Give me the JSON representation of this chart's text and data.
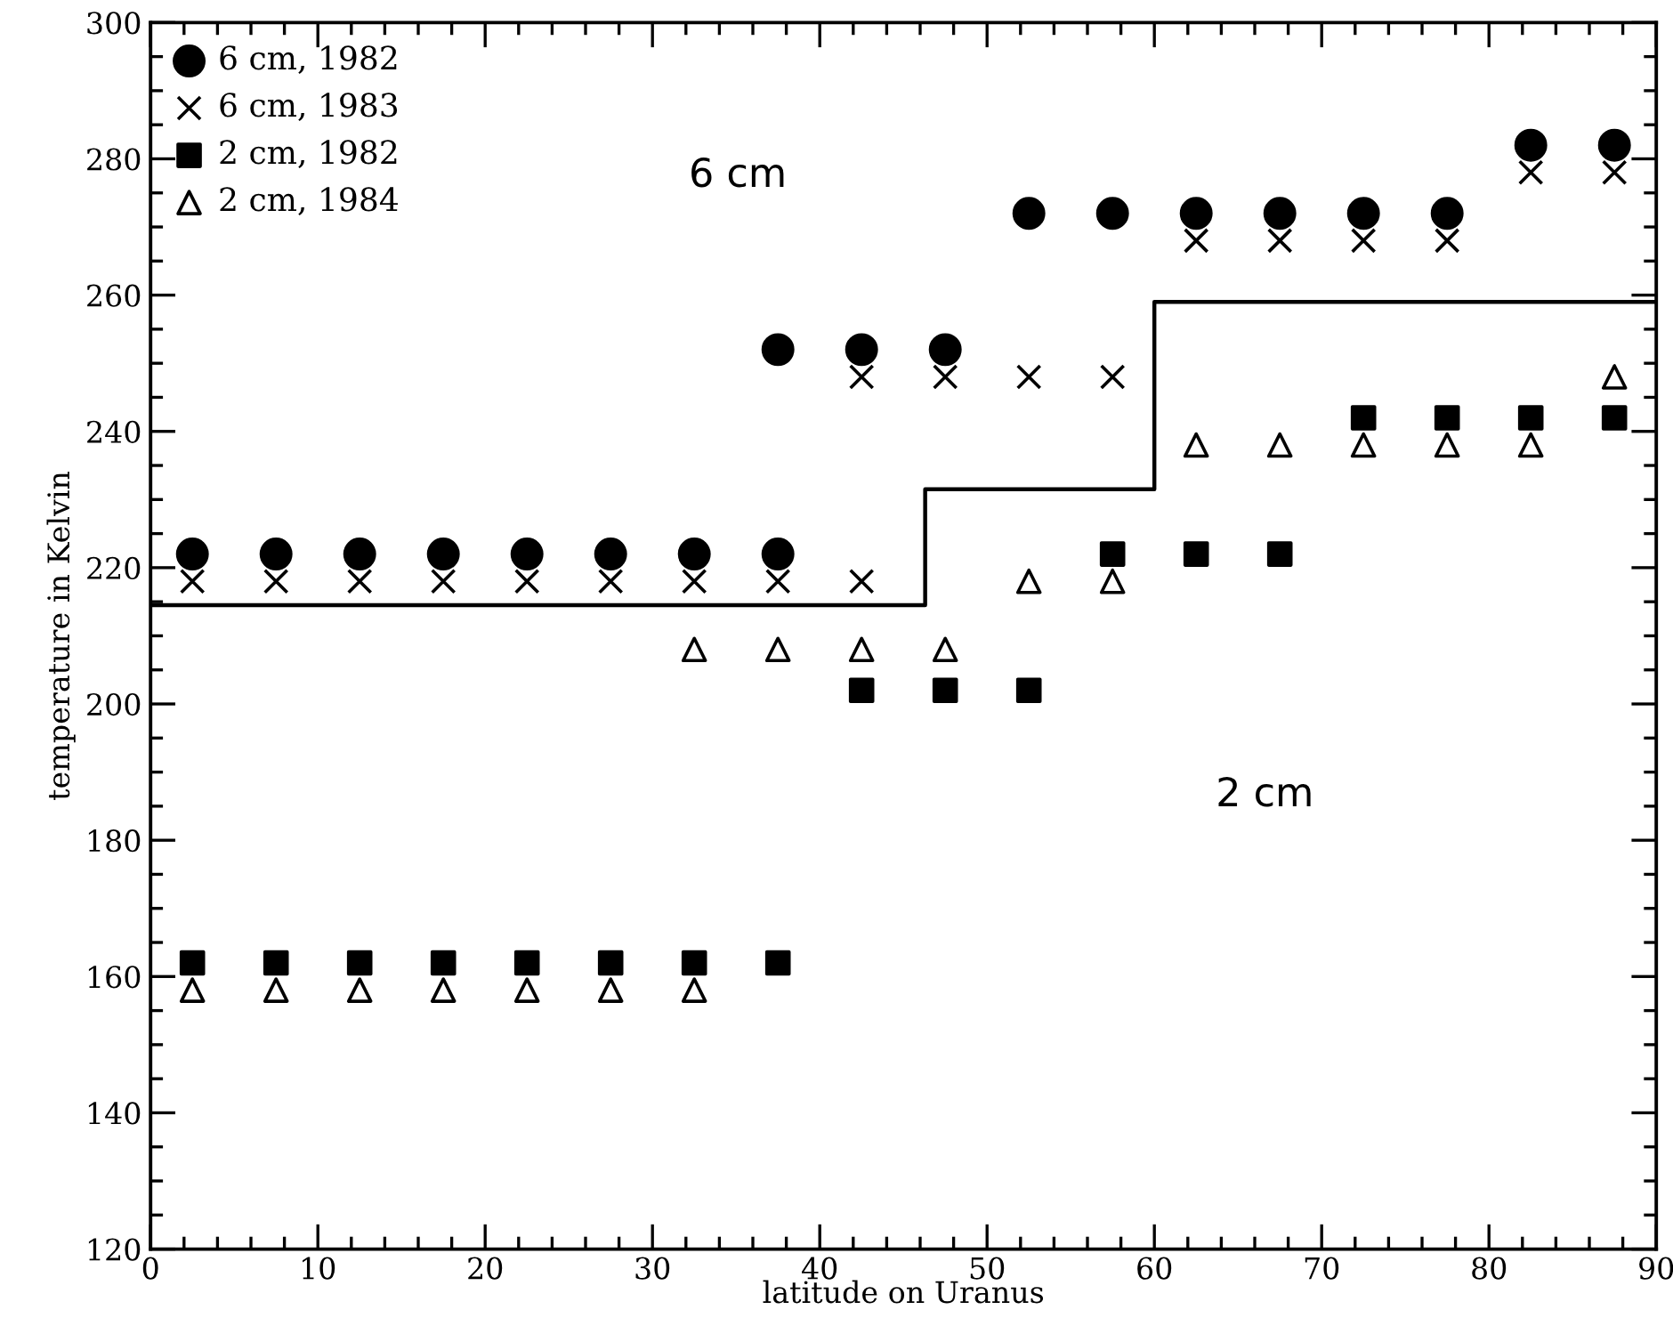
{
  "chart_data": {
    "type": "scatter",
    "xlabel": "latitude on Uranus",
    "ylabel": "temperature in Kelvin",
    "xlim": [
      0,
      90
    ],
    "ylim": [
      120,
      300
    ],
    "xticks": [
      0,
      {
        "value": 2,
        "label": null
      },
      {
        "value": 4,
        "label": null
      },
      {
        "value": 6,
        "label": null
      },
      {
        "value": 8,
        "label": null
      },
      10,
      {
        "value": 12,
        "label": null
      },
      {
        "value": 14,
        "label": null
      },
      {
        "value": 16,
        "label": null
      },
      {
        "value": 18,
        "label": null
      },
      20,
      {
        "value": 22,
        "label": null
      },
      {
        "value": 24,
        "label": null
      },
      {
        "value": 26,
        "label": null
      },
      {
        "value": 28,
        "label": null
      },
      30,
      {
        "value": 32,
        "label": null
      },
      {
        "value": 34,
        "label": null
      },
      {
        "value": 36,
        "label": null
      },
      {
        "value": 38,
        "label": null
      },
      40,
      {
        "value": 42,
        "label": null
      },
      {
        "value": 44,
        "label": null
      },
      {
        "value": 46,
        "label": null
      },
      {
        "value": 48,
        "label": null
      },
      50,
      {
        "value": 52,
        "label": null
      },
      {
        "value": 54,
        "label": null
      },
      {
        "value": 56,
        "label": null
      },
      {
        "value": 58,
        "label": null
      },
      60,
      {
        "value": 62,
        "label": null
      },
      {
        "value": 64,
        "label": null
      },
      {
        "value": 66,
        "label": null
      },
      {
        "value": 68,
        "label": null
      },
      70,
      {
        "value": 72,
        "label": null
      },
      {
        "value": 74,
        "label": null
      },
      {
        "value": 76,
        "label": null
      },
      {
        "value": 78,
        "label": null
      },
      80,
      {
        "value": 82,
        "label": null
      },
      {
        "value": 84,
        "label": null
      },
      {
        "value": 86,
        "label": null
      },
      {
        "value": 88,
        "label": null
      },
      90
    ],
    "yticks": [
      120,
      {
        "value": 125,
        "label": null
      },
      {
        "value": 130,
        "label": null
      },
      {
        "value": 135,
        "label": null
      },
      140,
      {
        "value": 145,
        "label": null
      },
      {
        "value": 150,
        "label": null
      },
      {
        "value": 155,
        "label": null
      },
      160,
      {
        "value": 165,
        "label": null
      },
      {
        "value": 170,
        "label": null
      },
      {
        "value": 175,
        "label": null
      },
      180,
      {
        "value": 185,
        "label": null
      },
      {
        "value": 190,
        "label": null
      },
      {
        "value": 195,
        "label": null
      },
      200,
      {
        "value": 205,
        "label": null
      },
      {
        "value": 210,
        "label": null
      },
      {
        "value": 215,
        "label": null
      },
      220,
      {
        "value": 225,
        "label": null
      },
      {
        "value": 230,
        "label": null
      },
      {
        "value": 235,
        "label": null
      },
      240,
      {
        "value": 245,
        "label": null
      },
      {
        "value": 250,
        "label": null
      },
      {
        "value": 255,
        "label": null
      },
      260,
      {
        "value": 265,
        "label": null
      },
      {
        "value": 270,
        "label": null
      },
      {
        "value": 275,
        "label": null
      },
      280,
      {
        "value": 285,
        "label": null
      },
      {
        "value": 290,
        "label": null
      },
      {
        "value": 295,
        "label": null
      },
      300
    ],
    "legend": "top left",
    "grid": false,
    "series": [
      {
        "name": "6 cm, 1982",
        "color": "#000000",
        "marker": "circle",
        "x": [
          2.5,
          7.5,
          12.5,
          17.5,
          22.5,
          27.5,
          32.5,
          37.5,
          37.5,
          42.5,
          47.5,
          52.5,
          57.5,
          62.5,
          67.5,
          72.5,
          77.5,
          82.5,
          87.5
        ],
        "values": [
          222,
          222,
          222,
          222,
          222,
          222,
          222,
          222,
          252,
          252,
          252,
          272,
          272,
          272,
          272,
          272,
          272,
          282,
          282
        ]
      },
      {
        "name": "6 cm, 1983",
        "color": "#000000",
        "marker": "cross",
        "x": [
          2.5,
          7.5,
          12.5,
          17.5,
          22.5,
          27.5,
          32.5,
          37.5,
          42.5,
          42.5,
          47.5,
          52.5,
          57.5,
          62.5,
          67.5,
          72.5,
          77.5,
          82.5,
          87.5
        ],
        "values": [
          218,
          218,
          218,
          218,
          218,
          218,
          218,
          218,
          218,
          248,
          248,
          248,
          248,
          268,
          268,
          268,
          268,
          278,
          278
        ]
      },
      {
        "name": "2 cm, 1982",
        "color": "#000000",
        "marker": "square",
        "x": [
          2.5,
          7.5,
          12.5,
          17.5,
          22.5,
          27.5,
          32.5,
          37.5,
          42.5,
          47.5,
          52.5,
          57.5,
          62.5,
          67.5,
          72.5,
          77.5,
          82.5,
          87.5
        ],
        "values": [
          162,
          162,
          162,
          162,
          162,
          162,
          162,
          162,
          202,
          202,
          202,
          222,
          222,
          222,
          242,
          242,
          242,
          242
        ]
      },
      {
        "name": "2 cm, 1984",
        "color": "#000000",
        "marker": "triangle",
        "x": [
          2.5,
          7.5,
          12.5,
          17.5,
          22.5,
          27.5,
          32.5,
          32.5,
          37.5,
          42.5,
          47.5,
          52.5,
          57.5,
          62.5,
          67.5,
          72.5,
          77.5,
          82.5,
          87.5
        ],
        "values": [
          158,
          158,
          158,
          158,
          158,
          158,
          158,
          208,
          208,
          208,
          208,
          218,
          218,
          238,
          238,
          238,
          238,
          238,
          248
        ]
      },
      {
        "type": "step",
        "color": "#000000",
        "line_style": "solid",
        "x": [
          0,
          46.3,
          60,
          90
        ],
        "values": [
          214.5,
          231.5,
          259,
          259
        ]
      }
    ],
    "annotations": [
      "6 cm",
      "2 cm"
    ]
  }
}
